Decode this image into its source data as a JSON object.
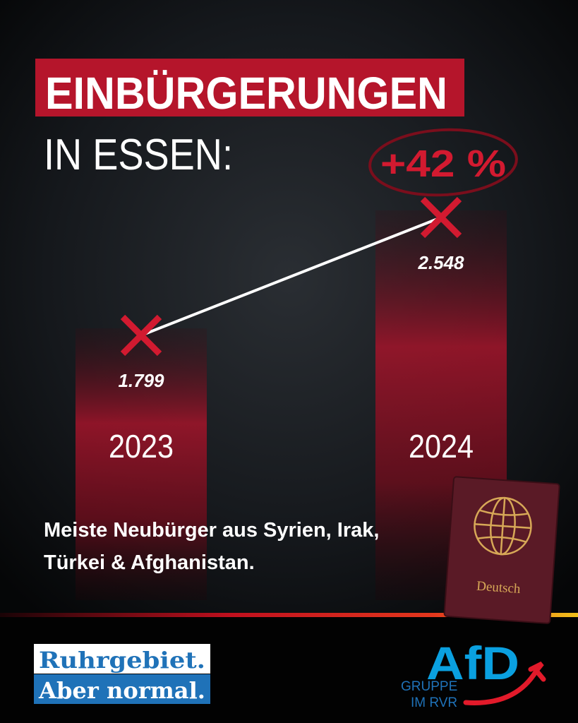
{
  "chart_data": {
    "type": "line",
    "title": "EINBÜRGERUNGEN",
    "subtitle": "IN ESSEN:",
    "categories": [
      "2023",
      "2024"
    ],
    "values": [
      1799,
      2548
    ],
    "value_labels": [
      "1.799",
      "2.548"
    ],
    "color": "#d21a30",
    "annotation": "+42 %",
    "note": "Meiste Neubürger aus Syrien, Irak, Türkei & Afghanistan."
  },
  "passport": {
    "label": "Deutsch"
  },
  "footer": {
    "slogan": [
      "Ruhrgebiet.",
      "Aber normal."
    ],
    "logo": {
      "name": "AfD",
      "subtitle": [
        "GRUPPE",
        "IM RVR"
      ]
    }
  }
}
